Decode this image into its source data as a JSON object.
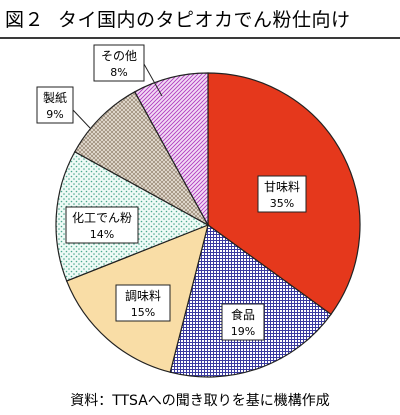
{
  "title": {
    "figure_no": "図２",
    "text": "タイ国内のタピオカでん粉仕向け"
  },
  "source": "資料：TTSAへの聞き取りを基に機構作成",
  "chart_data": {
    "type": "pie",
    "title": "タイ国内のタピオカでん粉仕向け",
    "unit": "%",
    "slices": [
      {
        "label": "甘味料",
        "value": 35,
        "value_label": "35%",
        "color": "#e5381c",
        "pattern": "solid"
      },
      {
        "label": "食品",
        "value": 19,
        "value_label": "19%",
        "color": "#3a3aa0",
        "pattern": "grid"
      },
      {
        "label": "調味料",
        "value": 15,
        "value_label": "15%",
        "color": "#f9dda6",
        "pattern": "solid"
      },
      {
        "label": "化工でん粉",
        "value": 14,
        "value_label": "14%",
        "color": "#9fd8c8",
        "pattern": "dots"
      },
      {
        "label": "製紙",
        "value": 9,
        "value_label": "9%",
        "color": "#9b8b78",
        "pattern": "crosshatch"
      },
      {
        "label": "その他",
        "value": 8,
        "value_label": "8%",
        "color": "#b03cc0",
        "pattern": "diagonal"
      }
    ],
    "start": "12 o'clock",
    "direction": "clockwise"
  }
}
